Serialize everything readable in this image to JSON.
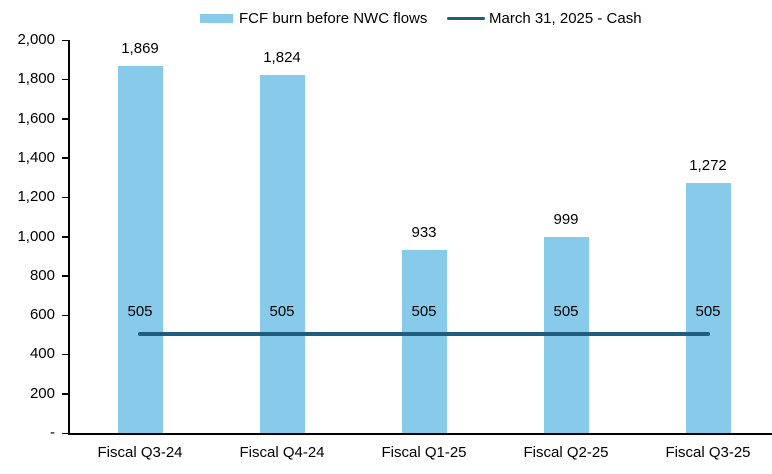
{
  "legend": {
    "bar_label": "FCF burn before NWC flows",
    "line_label": "March 31, 2025 - Cash"
  },
  "colors": {
    "bar": "#87CAE9",
    "line": "#1F5C7D",
    "axis": "#000000",
    "text": "#000000"
  },
  "chart_data": {
    "type": "bar",
    "title": "",
    "xlabel": "",
    "ylabel": "",
    "categories": [
      "Fiscal Q3-24",
      "Fiscal Q4-24",
      "Fiscal Q1-25",
      "Fiscal Q2-25",
      "Fiscal Q3-25"
    ],
    "series": [
      {
        "name": "FCF burn before NWC flows",
        "type": "bar",
        "values": [
          1869,
          1824,
          933,
          999,
          1272
        ],
        "labels": [
          "1,869",
          "1,824",
          "933",
          "999",
          "1,272"
        ]
      },
      {
        "name": "March 31, 2025 - Cash",
        "type": "line",
        "values": [
          505,
          505,
          505,
          505,
          505
        ],
        "labels": [
          "505",
          "505",
          "505",
          "505",
          "505"
        ]
      }
    ],
    "ylim": [
      0,
      2000
    ],
    "y_tick_labels": [
      "2,000",
      "1,800",
      "1,600",
      "1,400",
      "1,200",
      "1,000",
      "800",
      "600",
      "400",
      "200",
      "-"
    ],
    "grid": false,
    "legend_position": "top"
  }
}
